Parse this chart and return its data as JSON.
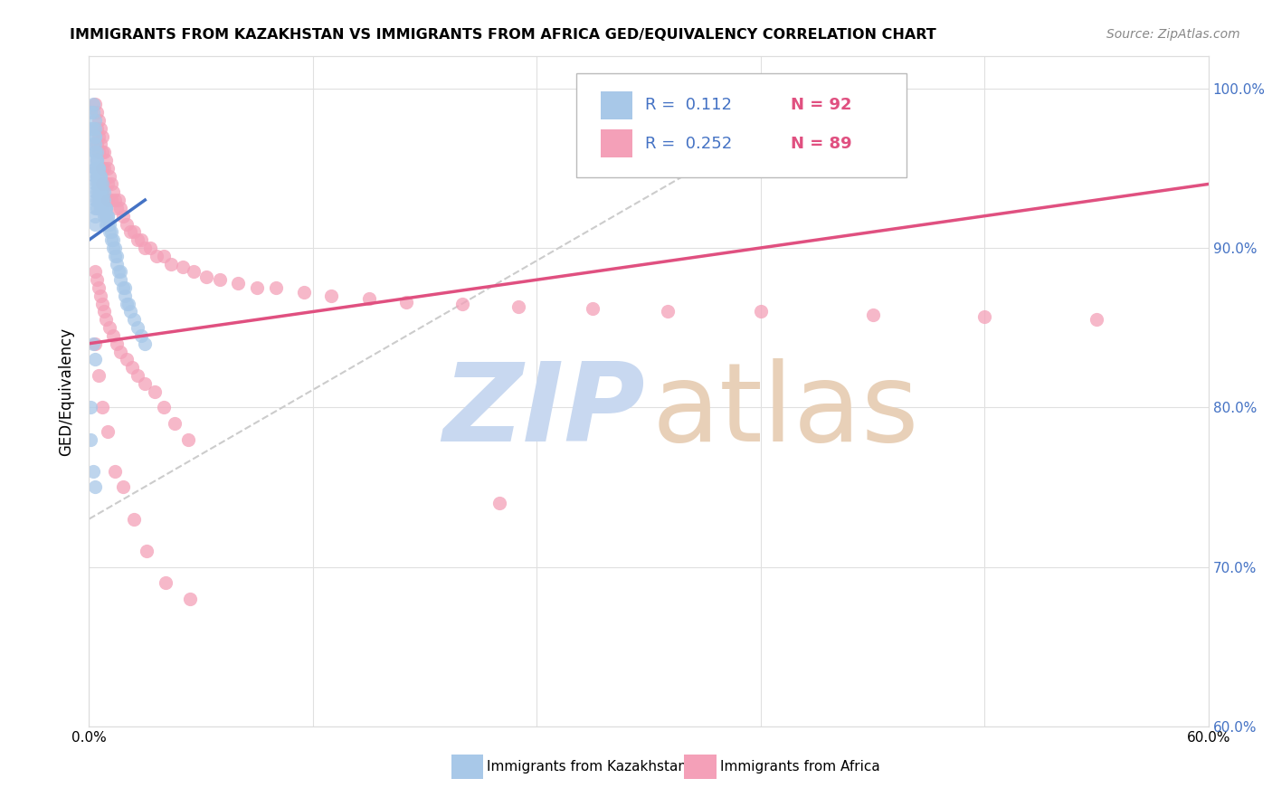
{
  "title": "IMMIGRANTS FROM KAZAKHSTAN VS IMMIGRANTS FROM AFRICA GED/EQUIVALENCY CORRELATION CHART",
  "source": "Source: ZipAtlas.com",
  "ylabel": "GED/Equivalency",
  "legend_r1": "R =  0.112",
  "legend_n1": "N = 92",
  "legend_r2": "R =  0.252",
  "legend_n2": "N = 89",
  "color_blue": "#a8c8e8",
  "color_pink": "#f4a0b8",
  "color_blue_text": "#4472c4",
  "color_pink_text": "#e05080",
  "trendline_blue": "#4472c4",
  "trendline_pink": "#e05080",
  "diagonal_color": "#cccccc",
  "watermark_zip_color": "#c8d8f0",
  "watermark_atlas_color": "#e8d0b8",
  "xlim": [
    0.0,
    0.6
  ],
  "ylim": [
    0.6,
    1.02
  ],
  "kaz_x": [
    0.002,
    0.002,
    0.003,
    0.003,
    0.003,
    0.003,
    0.003,
    0.003,
    0.003,
    0.003,
    0.003,
    0.003,
    0.003,
    0.003,
    0.003,
    0.003,
    0.004,
    0.004,
    0.004,
    0.004,
    0.004,
    0.004,
    0.004,
    0.004,
    0.005,
    0.005,
    0.005,
    0.005,
    0.005,
    0.006,
    0.006,
    0.006,
    0.006,
    0.006,
    0.007,
    0.007,
    0.007,
    0.008,
    0.008,
    0.008,
    0.009,
    0.009,
    0.009,
    0.01,
    0.01,
    0.011,
    0.012,
    0.013,
    0.014,
    0.015,
    0.016,
    0.017,
    0.018,
    0.019,
    0.02,
    0.022,
    0.024,
    0.026,
    0.028,
    0.03,
    0.001,
    0.001,
    0.002,
    0.002,
    0.003,
    0.003,
    0.003,
    0.004,
    0.004,
    0.005,
    0.005,
    0.006,
    0.006,
    0.007,
    0.007,
    0.008,
    0.009,
    0.01,
    0.011,
    0.012,
    0.013,
    0.014,
    0.015,
    0.017,
    0.019,
    0.021,
    0.001,
    0.001,
    0.002,
    0.003,
    0.002,
    0.003
  ],
  "kaz_y": [
    0.99,
    0.985,
    0.98,
    0.975,
    0.97,
    0.965,
    0.96,
    0.955,
    0.95,
    0.945,
    0.94,
    0.935,
    0.93,
    0.925,
    0.92,
    0.915,
    0.96,
    0.955,
    0.95,
    0.945,
    0.94,
    0.935,
    0.93,
    0.925,
    0.95,
    0.945,
    0.94,
    0.935,
    0.93,
    0.945,
    0.94,
    0.935,
    0.93,
    0.925,
    0.935,
    0.93,
    0.925,
    0.93,
    0.925,
    0.92,
    0.925,
    0.92,
    0.915,
    0.92,
    0.915,
    0.91,
    0.905,
    0.9,
    0.895,
    0.89,
    0.885,
    0.88,
    0.875,
    0.87,
    0.865,
    0.86,
    0.855,
    0.85,
    0.845,
    0.84,
    0.985,
    0.975,
    0.975,
    0.965,
    0.97,
    0.96,
    0.95,
    0.955,
    0.945,
    0.95,
    0.94,
    0.945,
    0.935,
    0.94,
    0.93,
    0.935,
    0.925,
    0.92,
    0.915,
    0.91,
    0.905,
    0.9,
    0.895,
    0.885,
    0.875,
    0.865,
    0.8,
    0.78,
    0.76,
    0.75,
    0.84,
    0.83
  ],
  "africa_x": [
    0.003,
    0.004,
    0.004,
    0.004,
    0.005,
    0.005,
    0.005,
    0.006,
    0.006,
    0.007,
    0.007,
    0.007,
    0.007,
    0.008,
    0.008,
    0.009,
    0.01,
    0.01,
    0.01,
    0.011,
    0.012,
    0.012,
    0.013,
    0.014,
    0.015,
    0.016,
    0.017,
    0.018,
    0.02,
    0.022,
    0.024,
    0.026,
    0.028,
    0.03,
    0.033,
    0.036,
    0.04,
    0.044,
    0.05,
    0.056,
    0.063,
    0.07,
    0.08,
    0.09,
    0.1,
    0.115,
    0.13,
    0.15,
    0.17,
    0.2,
    0.23,
    0.27,
    0.31,
    0.36,
    0.42,
    0.48,
    0.54,
    0.003,
    0.004,
    0.005,
    0.006,
    0.007,
    0.008,
    0.009,
    0.011,
    0.013,
    0.015,
    0.017,
    0.02,
    0.023,
    0.026,
    0.03,
    0.035,
    0.04,
    0.046,
    0.053,
    0.003,
    0.005,
    0.007,
    0.01,
    0.014,
    0.018,
    0.024,
    0.031,
    0.041,
    0.054,
    0.22
  ],
  "africa_y": [
    0.99,
    0.985,
    0.975,
    0.965,
    0.98,
    0.97,
    0.96,
    0.975,
    0.965,
    0.97,
    0.96,
    0.95,
    0.94,
    0.96,
    0.95,
    0.955,
    0.95,
    0.94,
    0.93,
    0.945,
    0.94,
    0.93,
    0.935,
    0.93,
    0.925,
    0.93,
    0.925,
    0.92,
    0.915,
    0.91,
    0.91,
    0.905,
    0.905,
    0.9,
    0.9,
    0.895,
    0.895,
    0.89,
    0.888,
    0.885,
    0.882,
    0.88,
    0.878,
    0.875,
    0.875,
    0.872,
    0.87,
    0.868,
    0.866,
    0.865,
    0.863,
    0.862,
    0.86,
    0.86,
    0.858,
    0.857,
    0.855,
    0.885,
    0.88,
    0.875,
    0.87,
    0.865,
    0.86,
    0.855,
    0.85,
    0.845,
    0.84,
    0.835,
    0.83,
    0.825,
    0.82,
    0.815,
    0.81,
    0.8,
    0.79,
    0.78,
    0.84,
    0.82,
    0.8,
    0.785,
    0.76,
    0.75,
    0.73,
    0.71,
    0.69,
    0.68,
    0.74
  ],
  "kaz_trendline_x": [
    0.0,
    0.03
  ],
  "kaz_trendline_y": [
    0.905,
    0.93
  ],
  "africa_trendline_x": [
    0.0,
    0.6
  ],
  "africa_trendline_y": [
    0.84,
    0.94
  ],
  "xticks": [
    0.0,
    0.12,
    0.24,
    0.36,
    0.48,
    0.6
  ],
  "xticklabels": [
    "0.0%",
    "",
    "",
    "",
    "",
    "60.0%"
  ],
  "yticks": [
    0.6,
    0.7,
    0.8,
    0.9,
    1.0
  ],
  "yticklabels_right": [
    "60.0%",
    "70.0%",
    "80.0%",
    "90.0%",
    "100.0%"
  ],
  "legend_label1": "Immigrants from Kazakhstan",
  "legend_label2": "Immigrants from Africa"
}
